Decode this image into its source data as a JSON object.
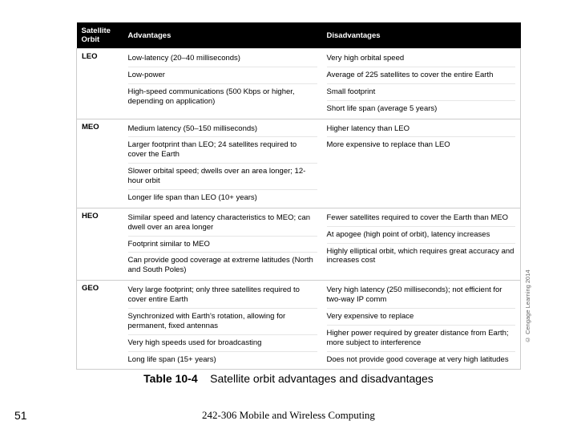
{
  "table": {
    "headers": {
      "orbit": "Satellite Orbit",
      "adv": "Advantages",
      "dis": "Disadvantages"
    },
    "rows": [
      {
        "orbit": "LEO",
        "adv": [
          "Low-latency (20–40 milliseconds)",
          "Low-power",
          "High-speed communications (500 Kbps or higher, depending on application)"
        ],
        "dis": [
          "Very high orbital speed",
          "Average of 225 satellites to cover the entire Earth",
          "Small footprint",
          "Short life span (average 5 years)"
        ]
      },
      {
        "orbit": "MEO",
        "adv": [
          "Medium latency (50–150 milliseconds)",
          "Larger footprint than LEO; 24 satellites required to cover the Earth",
          "Slower orbital speed; dwells over an area longer; 12-hour orbit",
          "Longer life span than LEO (10+ years)"
        ],
        "dis": [
          "Higher latency than LEO",
          "More expensive to replace than LEO"
        ]
      },
      {
        "orbit": "HEO",
        "adv": [
          "Similar speed and latency characteristics to MEO; can dwell over an area longer",
          "Footprint similar to MEO",
          "Can provide good coverage at extreme latitudes (North and South Poles)"
        ],
        "dis": [
          "Fewer satellites required to cover the Earth than MEO",
          "At apogee (high point of orbit), latency increases",
          "Highly elliptical orbit, which requires great accuracy and increases cost"
        ]
      },
      {
        "orbit": "GEO",
        "adv": [
          "Very large footprint; only three satellites required to cover entire Earth",
          "Synchronized with Earth's rotation, allowing for permanent, fixed antennas",
          "Very high speeds used for broadcasting",
          "Long life span (15+ years)"
        ],
        "dis": [
          "Very high latency (250 milliseconds); not efficient for two-way IP comm",
          "Very expensive to replace",
          "Higher power required by greater distance from Earth; more subject to interference",
          "Does not provide good coverage at very high latitudes"
        ]
      }
    ]
  },
  "caption_label": "Table 10-4",
  "caption_text": "Satellite orbit advantages and disadvantages",
  "slide_number": "51",
  "footer_text": "242-306 Mobile and Wireless Computing",
  "credit": "© Cengage Learning 2014"
}
